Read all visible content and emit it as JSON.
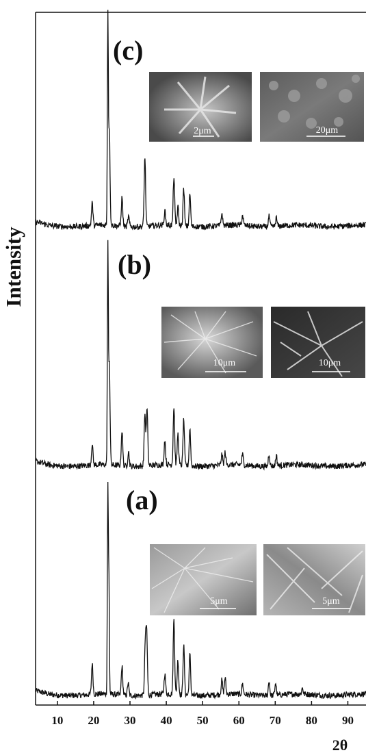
{
  "chart_data": {
    "type": "line",
    "xlabel": "2θ",
    "ylabel": "Intensity",
    "xlim": [
      4,
      95
    ],
    "x_ticks": [
      10,
      20,
      30,
      40,
      50,
      60,
      70,
      80,
      90
    ],
    "grid": false,
    "series": [
      {
        "label": "(a)",
        "peaks": [
          [
            19.6,
            0.15
          ],
          [
            23.9,
            1.0
          ],
          [
            24.2,
            0.55
          ],
          [
            27.8,
            0.14
          ],
          [
            29.5,
            0.06
          ],
          [
            34.2,
            0.24
          ],
          [
            34.6,
            0.3
          ],
          [
            39.6,
            0.1
          ],
          [
            42.1,
            0.37
          ],
          [
            43.2,
            0.17
          ],
          [
            44.8,
            0.24
          ],
          [
            46.5,
            0.2
          ],
          [
            55.3,
            0.07
          ],
          [
            56.2,
            0.08
          ],
          [
            61.0,
            0.05
          ],
          [
            68.3,
            0.07
          ],
          [
            70.1,
            0.06
          ],
          [
            77.5,
            0.03
          ]
        ],
        "sem_scale_bars": [
          "5μm",
          "5μm"
        ]
      },
      {
        "label": "(b)",
        "peaks": [
          [
            19.6,
            0.1
          ],
          [
            23.9,
            1.0
          ],
          [
            24.3,
            0.5
          ],
          [
            27.8,
            0.17
          ],
          [
            29.6,
            0.07
          ],
          [
            34.1,
            0.25
          ],
          [
            34.7,
            0.27
          ],
          [
            39.6,
            0.12
          ],
          [
            42.1,
            0.28
          ],
          [
            43.2,
            0.15
          ],
          [
            44.8,
            0.22
          ],
          [
            46.5,
            0.18
          ],
          [
            55.3,
            0.05
          ],
          [
            56.2,
            0.06
          ],
          [
            61.0,
            0.05
          ],
          [
            68.3,
            0.06
          ],
          [
            70.3,
            0.05
          ]
        ],
        "sem_scale_bars": [
          "10μm",
          "10μm"
        ]
      },
      {
        "label": "(c)",
        "peaks": [
          [
            19.6,
            0.11
          ],
          [
            23.9,
            1.0
          ],
          [
            24.3,
            0.48
          ],
          [
            27.8,
            0.14
          ],
          [
            29.6,
            0.05
          ],
          [
            34.1,
            0.34
          ],
          [
            39.6,
            0.07
          ],
          [
            42.1,
            0.24
          ],
          [
            43.2,
            0.09
          ],
          [
            44.8,
            0.18
          ],
          [
            46.5,
            0.16
          ],
          [
            55.3,
            0.06
          ],
          [
            61.0,
            0.05
          ],
          [
            68.3,
            0.05
          ],
          [
            70.3,
            0.04
          ]
        ],
        "sem_scale_bars": [
          "2μm",
          "20μm"
        ]
      }
    ]
  }
}
